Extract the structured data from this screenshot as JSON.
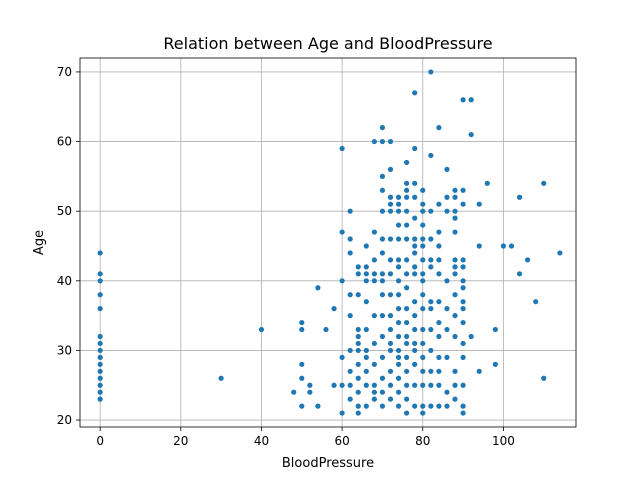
{
  "chart_data": {
    "type": "scatter",
    "title": "Relation between Age and BloodPressure",
    "xlabel": "BloodPressure",
    "ylabel": "Age",
    "xlim": [
      -5,
      118
    ],
    "ylim": [
      19,
      72
    ],
    "xticks": [
      0,
      20,
      40,
      60,
      80,
      100
    ],
    "yticks": [
      20,
      30,
      40,
      50,
      60,
      70
    ],
    "grid": true,
    "marker_color": "#1f77b4",
    "points": [
      [
        0,
        23
      ],
      [
        0,
        24
      ],
      [
        0,
        25
      ],
      [
        0,
        26
      ],
      [
        0,
        27
      ],
      [
        0,
        28
      ],
      [
        0,
        29
      ],
      [
        0,
        30
      ],
      [
        0,
        31
      ],
      [
        0,
        32
      ],
      [
        0,
        36
      ],
      [
        0,
        38
      ],
      [
        0,
        40
      ],
      [
        0,
        41
      ],
      [
        0,
        44
      ],
      [
        30,
        26
      ],
      [
        40,
        33
      ],
      [
        48,
        24
      ],
      [
        50,
        22
      ],
      [
        50,
        26
      ],
      [
        50,
        28
      ],
      [
        50,
        33
      ],
      [
        50,
        34
      ],
      [
        52,
        24
      ],
      [
        52,
        25
      ],
      [
        54,
        22
      ],
      [
        54,
        39
      ],
      [
        56,
        33
      ],
      [
        58,
        25
      ],
      [
        58,
        36
      ],
      [
        60,
        21
      ],
      [
        60,
        25
      ],
      [
        60,
        29
      ],
      [
        60,
        40
      ],
      [
        60,
        47
      ],
      [
        60,
        59
      ],
      [
        62,
        23
      ],
      [
        62,
        25
      ],
      [
        62,
        27
      ],
      [
        62,
        30
      ],
      [
        62,
        35
      ],
      [
        62,
        38
      ],
      [
        62,
        44
      ],
      [
        62,
        46
      ],
      [
        62,
        50
      ],
      [
        64,
        21
      ],
      [
        64,
        22
      ],
      [
        64,
        24
      ],
      [
        64,
        26
      ],
      [
        64,
        28
      ],
      [
        64,
        30
      ],
      [
        64,
        31
      ],
      [
        64,
        32
      ],
      [
        64,
        33
      ],
      [
        64,
        38
      ],
      [
        64,
        41
      ],
      [
        64,
        42
      ],
      [
        66,
        22
      ],
      [
        66,
        25
      ],
      [
        66,
        27
      ],
      [
        66,
        29
      ],
      [
        66,
        30
      ],
      [
        66,
        33
      ],
      [
        66,
        37
      ],
      [
        66,
        40
      ],
      [
        66,
        41
      ],
      [
        66,
        42
      ],
      [
        66,
        45
      ],
      [
        68,
        23
      ],
      [
        68,
        24
      ],
      [
        68,
        25
      ],
      [
        68,
        28
      ],
      [
        68,
        31
      ],
      [
        68,
        35
      ],
      [
        68,
        40
      ],
      [
        68,
        41
      ],
      [
        68,
        43
      ],
      [
        68,
        47
      ],
      [
        68,
        60
      ],
      [
        70,
        22
      ],
      [
        70,
        24
      ],
      [
        70,
        26
      ],
      [
        70,
        29
      ],
      [
        70,
        32
      ],
      [
        70,
        35
      ],
      [
        70,
        38
      ],
      [
        70,
        40
      ],
      [
        70,
        41
      ],
      [
        70,
        44
      ],
      [
        70,
        46
      ],
      [
        70,
        50
      ],
      [
        70,
        53
      ],
      [
        70,
        55
      ],
      [
        70,
        60
      ],
      [
        70,
        62
      ],
      [
        72,
        23
      ],
      [
        72,
        25
      ],
      [
        72,
        27
      ],
      [
        72,
        30
      ],
      [
        72,
        31
      ],
      [
        72,
        33
      ],
      [
        72,
        35
      ],
      [
        72,
        38
      ],
      [
        72,
        41
      ],
      [
        72,
        43
      ],
      [
        72,
        46
      ],
      [
        72,
        50
      ],
      [
        72,
        51
      ],
      [
        72,
        52
      ],
      [
        72,
        56
      ],
      [
        72,
        60
      ],
      [
        74,
        22
      ],
      [
        74,
        24
      ],
      [
        74,
        26
      ],
      [
        74,
        28
      ],
      [
        74,
        29
      ],
      [
        74,
        30
      ],
      [
        74,
        32
      ],
      [
        74,
        34
      ],
      [
        74,
        36
      ],
      [
        74,
        38
      ],
      [
        74,
        40
      ],
      [
        74,
        42
      ],
      [
        74,
        43
      ],
      [
        74,
        46
      ],
      [
        74,
        48
      ],
      [
        74,
        50
      ],
      [
        74,
        51
      ],
      [
        74,
        52
      ],
      [
        76,
        21
      ],
      [
        76,
        23
      ],
      [
        76,
        25
      ],
      [
        76,
        27
      ],
      [
        76,
        29
      ],
      [
        76,
        31
      ],
      [
        76,
        32
      ],
      [
        76,
        34
      ],
      [
        76,
        36
      ],
      [
        76,
        39
      ],
      [
        76,
        41
      ],
      [
        76,
        43
      ],
      [
        76,
        46
      ],
      [
        76,
        48
      ],
      [
        76,
        50
      ],
      [
        76,
        52
      ],
      [
        76,
        53
      ],
      [
        76,
        54
      ],
      [
        76,
        57
      ],
      [
        78,
        22
      ],
      [
        78,
        25
      ],
      [
        78,
        28
      ],
      [
        78,
        30
      ],
      [
        78,
        31
      ],
      [
        78,
        33
      ],
      [
        78,
        35
      ],
      [
        78,
        37
      ],
      [
        78,
        41
      ],
      [
        78,
        42
      ],
      [
        78,
        44
      ],
      [
        78,
        45
      ],
      [
        78,
        46
      ],
      [
        78,
        49
      ],
      [
        78,
        52
      ],
      [
        78,
        54
      ],
      [
        78,
        59
      ],
      [
        78,
        67
      ],
      [
        80,
        21
      ],
      [
        80,
        22
      ],
      [
        80,
        25
      ],
      [
        80,
        27
      ],
      [
        80,
        29
      ],
      [
        80,
        31
      ],
      [
        80,
        33
      ],
      [
        80,
        36
      ],
      [
        80,
        38
      ],
      [
        80,
        40
      ],
      [
        80,
        41
      ],
      [
        80,
        43
      ],
      [
        80,
        45
      ],
      [
        80,
        46
      ],
      [
        80,
        48
      ],
      [
        80,
        50
      ],
      [
        80,
        51
      ],
      [
        80,
        53
      ],
      [
        82,
        22
      ],
      [
        82,
        25
      ],
      [
        82,
        27
      ],
      [
        82,
        30
      ],
      [
        82,
        33
      ],
      [
        82,
        36
      ],
      [
        82,
        37
      ],
      [
        82,
        42
      ],
      [
        82,
        43
      ],
      [
        82,
        46
      ],
      [
        82,
        50
      ],
      [
        82,
        58
      ],
      [
        82,
        70
      ],
      [
        84,
        22
      ],
      [
        84,
        25
      ],
      [
        84,
        27
      ],
      [
        84,
        29
      ],
      [
        84,
        32
      ],
      [
        84,
        34
      ],
      [
        84,
        37
      ],
      [
        84,
        41
      ],
      [
        84,
        43
      ],
      [
        84,
        45
      ],
      [
        84,
        47
      ],
      [
        84,
        51
      ],
      [
        84,
        62
      ],
      [
        86,
        22
      ],
      [
        86,
        24
      ],
      [
        86,
        29
      ],
      [
        86,
        33
      ],
      [
        86,
        36
      ],
      [
        86,
        40
      ],
      [
        86,
        50
      ],
      [
        86,
        52
      ],
      [
        86,
        56
      ],
      [
        88,
        23
      ],
      [
        88,
        25
      ],
      [
        88,
        27
      ],
      [
        88,
        32
      ],
      [
        88,
        35
      ],
      [
        88,
        38
      ],
      [
        88,
        41
      ],
      [
        88,
        42
      ],
      [
        88,
        43
      ],
      [
        88,
        47
      ],
      [
        88,
        49
      ],
      [
        88,
        50
      ],
      [
        88,
        52
      ],
      [
        88,
        53
      ],
      [
        90,
        21
      ],
      [
        90,
        22
      ],
      [
        90,
        25
      ],
      [
        90,
        29
      ],
      [
        90,
        31
      ],
      [
        90,
        34
      ],
      [
        90,
        36
      ],
      [
        90,
        37
      ],
      [
        90,
        39
      ],
      [
        90,
        40
      ],
      [
        90,
        42
      ],
      [
        90,
        43
      ],
      [
        90,
        51
      ],
      [
        90,
        53
      ],
      [
        90,
        66
      ],
      [
        92,
        32
      ],
      [
        92,
        61
      ],
      [
        92,
        66
      ],
      [
        94,
        27
      ],
      [
        94,
        45
      ],
      [
        94,
        51
      ],
      [
        96,
        54
      ],
      [
        98,
        28
      ],
      [
        98,
        33
      ],
      [
        100,
        45
      ],
      [
        102,
        45
      ],
      [
        104,
        41
      ],
      [
        104,
        52
      ],
      [
        106,
        43
      ],
      [
        108,
        37
      ],
      [
        110,
        26
      ],
      [
        110,
        54
      ],
      [
        114,
        44
      ]
    ]
  }
}
